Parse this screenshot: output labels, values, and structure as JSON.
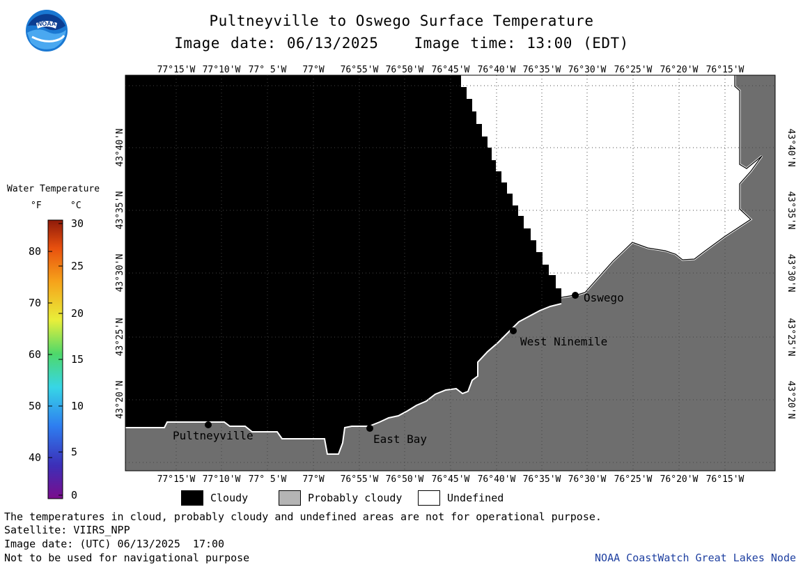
{
  "header": {
    "title": "Pultneyville to Oswego Surface Temperature",
    "image_date": "Image date: 06/13/2025",
    "image_time": "Image time: 13:00 (EDT)"
  },
  "logo": {
    "text": "NOAA",
    "icon": "noaa-logo-icon"
  },
  "map": {
    "lon_labels": [
      "77°15'W",
      "77°10'W",
      "77° 5'W",
      "77°W",
      "76°55'W",
      "76°50'W",
      "76°45'W",
      "76°40'W",
      "76°35'W",
      "76°30'W",
      "76°25'W",
      "76°20'W",
      "76°15'W"
    ],
    "lat_labels": [
      "43°20'N",
      "43°25'N",
      "43°30'N",
      "43°35'N",
      "43°40'N"
    ],
    "places": [
      {
        "name": "Pultneyville"
      },
      {
        "name": "East Bay"
      },
      {
        "name": "West Ninemile"
      },
      {
        "name": "Oswego"
      }
    ],
    "colors": {
      "cloudy": "#000000",
      "land": "#6e6e6e",
      "undefined": "#ffffff",
      "grid": "#555555"
    }
  },
  "legend": {
    "title": "Water Temperature",
    "unit_f": "°F",
    "unit_c": "°C",
    "f_ticks": [
      "80",
      "70",
      "60",
      "50",
      "40"
    ],
    "c_ticks": [
      "30",
      "25",
      "20",
      "15",
      "10",
      "5",
      "0"
    ]
  },
  "key": {
    "cloudy": "Cloudy",
    "probably_cloudy": "Probably cloudy",
    "undefined": "Undefined",
    "colors": {
      "cloudy": "#000000",
      "probably_cloudy": "#b4b4b4",
      "undefined": "#ffffff"
    }
  },
  "footer": {
    "note": "The temperatures in cloud, probably cloudy and undefined areas are not for operational purpose.",
    "satellite": "Satellite: VIIRS_NPP",
    "utc_date": "Image date: (UTC) 06/13/2025  17:00",
    "nav_warning": "Not to be used for navigational purpose",
    "credit": "NOAA CoastWatch Great Lakes Node"
  }
}
